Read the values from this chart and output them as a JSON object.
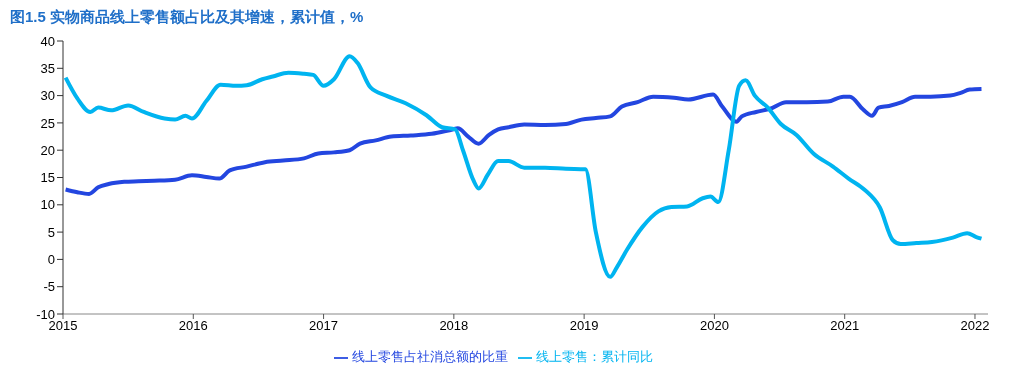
{
  "chart_data": {
    "type": "line",
    "title": "图1.5 实物商品线上零售额占比及其增速，累计值，%",
    "xlim": [
      2015,
      2022.1
    ],
    "xticks": [
      2015,
      2016,
      2017,
      2018,
      2019,
      2020,
      2021,
      2022
    ],
    "ylim": [
      -10,
      40
    ],
    "yticks": [
      -10,
      -5,
      0,
      5,
      10,
      15,
      20,
      25,
      30,
      35,
      40
    ],
    "grid": false,
    "legend": "bottom",
    "marker": "none",
    "line_style": "solid",
    "series": [
      {
        "name": "线上零售占社消总额的比重",
        "color": "#2346e0",
        "x": [
          2015.02,
          2015.11,
          2015.2,
          2015.27,
          2015.35,
          2015.47,
          2015.58,
          2015.7,
          2015.86,
          2015.99,
          2016.1,
          2016.2,
          2016.28,
          2016.41,
          2016.55,
          2016.69,
          2016.85,
          2016.96,
          2017.08,
          2017.2,
          2017.28,
          2017.4,
          2017.52,
          2017.67,
          2017.83,
          2017.99,
          2018.03,
          2018.11,
          2018.19,
          2018.27,
          2018.34,
          2018.42,
          2018.54,
          2018.7,
          2018.86,
          2018.98,
          2019.09,
          2019.2,
          2019.29,
          2019.41,
          2019.53,
          2019.69,
          2019.8,
          2019.99,
          2020.06,
          2020.17,
          2020.21,
          2020.32,
          2020.43,
          2020.55,
          2020.71,
          2020.87,
          2020.99,
          2021.04,
          2021.14,
          2021.21,
          2021.26,
          2021.34,
          2021.44,
          2021.54,
          2021.66,
          2021.81,
          2021.89,
          2021.96,
          2022.05
        ],
        "values": [
          12.8,
          12.3,
          12.0,
          13.2,
          13.8,
          14.2,
          14.3,
          14.4,
          14.6,
          15.4,
          15.1,
          14.8,
          16.3,
          17.0,
          17.8,
          18.1,
          18.5,
          19.4,
          19.6,
          20.0,
          21.2,
          21.8,
          22.5,
          22.7,
          23.0,
          23.8,
          24.0,
          22.5,
          21.2,
          22.8,
          23.8,
          24.2,
          24.7,
          24.6,
          24.8,
          25.6,
          25.9,
          26.2,
          28.0,
          28.8,
          29.8,
          29.6,
          29.3,
          30.2,
          28.0,
          25.2,
          26.2,
          27.0,
          27.6,
          28.8,
          28.8,
          28.9,
          29.8,
          29.8,
          27.5,
          26.3,
          27.8,
          28.1,
          28.8,
          29.8,
          29.8,
          30.0,
          30.5,
          31.1,
          31.2
        ]
      },
      {
        "name": "线上零售：累计同比",
        "color": "#00b4f0",
        "x": [
          2015.02,
          2015.11,
          2015.21,
          2015.27,
          2015.37,
          2015.5,
          2015.62,
          2015.78,
          2015.86,
          2015.94,
          2015.99,
          2016.1,
          2016.21,
          2016.33,
          2016.41,
          2016.53,
          2016.61,
          2016.73,
          2016.85,
          2016.92,
          2017.0,
          2017.08,
          2017.2,
          2017.26,
          2017.36,
          2017.48,
          2017.63,
          2017.79,
          2017.91,
          2018.01,
          2018.07,
          2018.15,
          2018.19,
          2018.26,
          2018.34,
          2018.42,
          2018.54,
          2018.7,
          2018.86,
          2019.01,
          2019.09,
          2019.2,
          2019.25,
          2019.33,
          2019.45,
          2019.57,
          2019.67,
          2019.79,
          2019.91,
          2019.97,
          2020.03,
          2020.11,
          2020.19,
          2020.24,
          2020.31,
          2020.41,
          2020.51,
          2020.63,
          2020.76,
          2020.91,
          2021.03,
          2021.15,
          2021.27,
          2021.37,
          2021.43,
          2021.55,
          2021.67,
          2021.83,
          2021.94,
          2022.01,
          2022.05
        ],
        "values": [
          33.3,
          29.5,
          27.0,
          27.8,
          27.3,
          28.2,
          27.0,
          25.8,
          25.6,
          26.3,
          25.8,
          29.0,
          32.0,
          31.8,
          31.9,
          33.0,
          33.5,
          34.2,
          34.0,
          33.8,
          31.8,
          33.0,
          37.2,
          36.0,
          31.5,
          30.0,
          28.6,
          26.4,
          24.2,
          23.8,
          20.0,
          14.5,
          13.0,
          15.5,
          18.0,
          18.0,
          16.8,
          16.8,
          16.6,
          16.5,
          5.0,
          -3.2,
          -1.5,
          1.8,
          6.0,
          8.8,
          9.6,
          9.7,
          11.2,
          11.5,
          10.5,
          20.0,
          31.8,
          32.8,
          30.0,
          27.8,
          24.8,
          22.8,
          19.4,
          17.0,
          14.8,
          12.8,
          9.5,
          3.5,
          2.8,
          3.0,
          3.2,
          4.0,
          4.8,
          4.1,
          3.8
        ]
      }
    ]
  }
}
